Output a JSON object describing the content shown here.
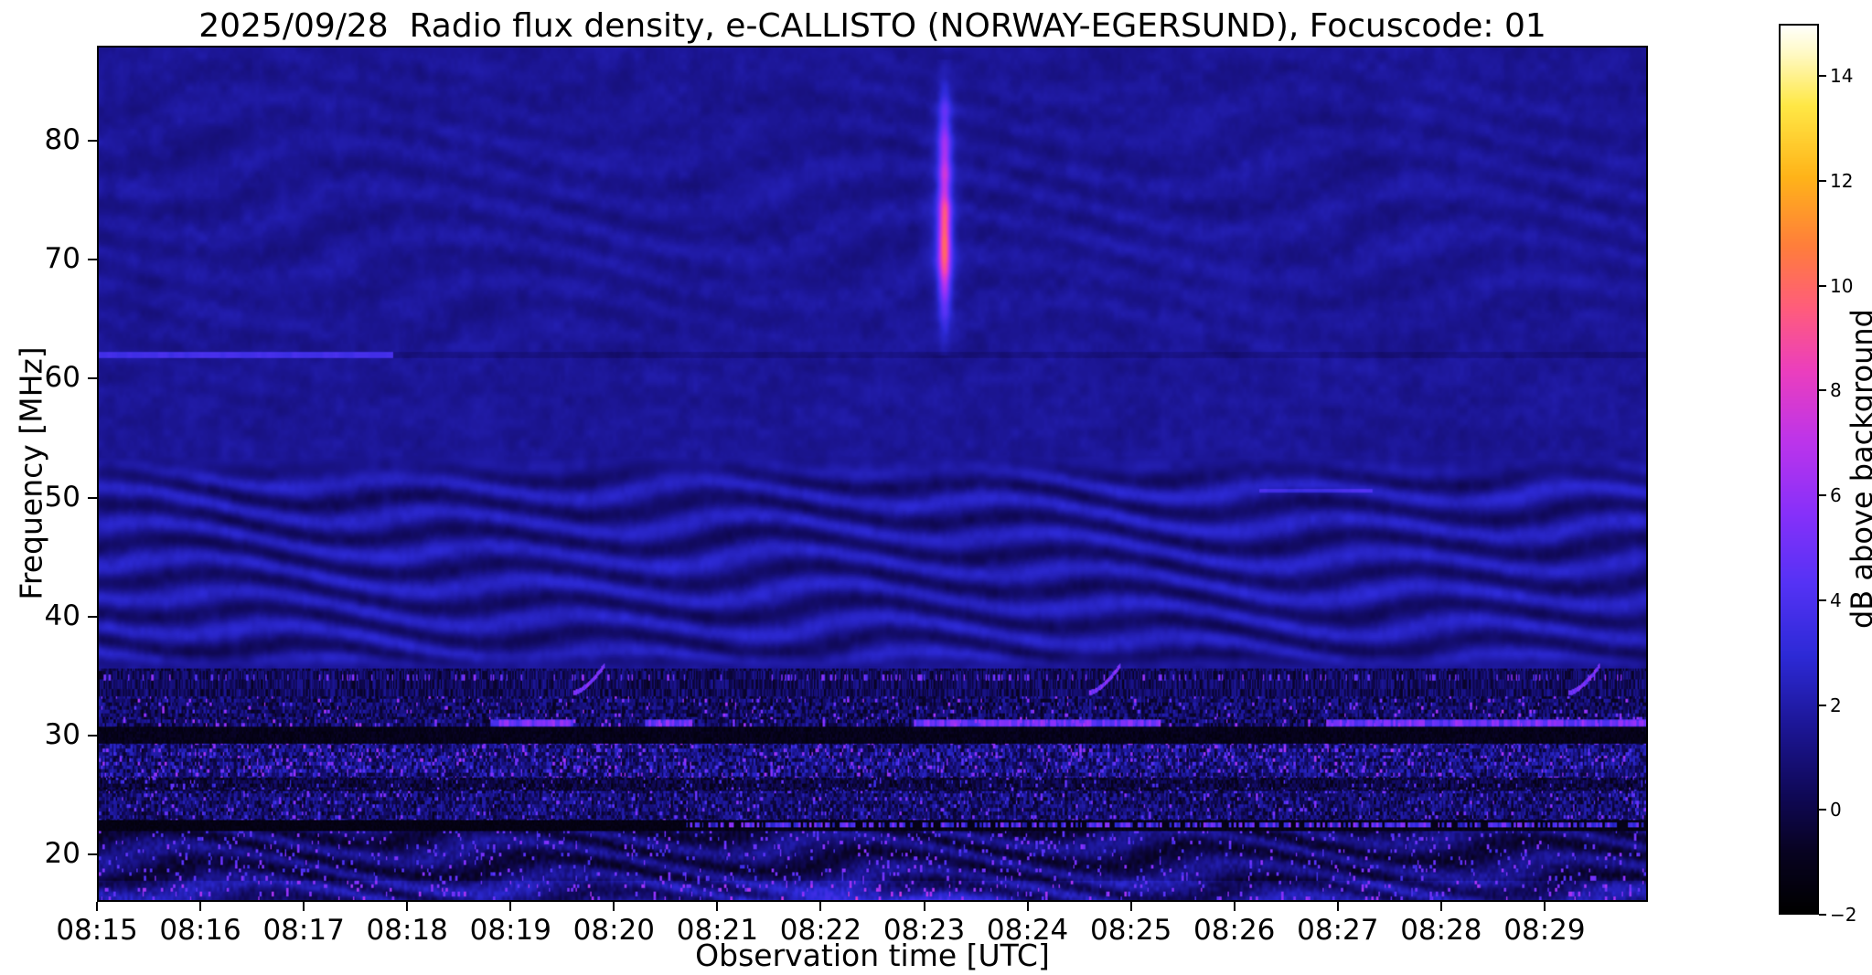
{
  "chart_data": {
    "type": "heatmap",
    "title": "2025/09/28  Radio flux density, e-CALLISTO (NORWAY-EGERSUND), Focuscode: 01",
    "xlabel": "Observation time [UTC]",
    "ylabel": "Frequency [MHz]",
    "x_tick_labels": [
      "08:15",
      "08:16",
      "08:17",
      "08:18",
      "08:19",
      "08:20",
      "08:21",
      "08:22",
      "08:23",
      "08:24",
      "08:25",
      "08:26",
      "08:27",
      "08:28",
      "08:29"
    ],
    "x_range_minutes": [
      0,
      15
    ],
    "x_start_label": "08:15",
    "x_end_label": "08:30",
    "y_ticks": [
      20,
      30,
      40,
      50,
      60,
      70,
      80
    ],
    "y_range_mhz": [
      16,
      88
    ],
    "grid": false,
    "legend": "none",
    "colorbar": {
      "label": "dB above background",
      "ticks": [
        -2,
        0,
        2,
        4,
        6,
        8,
        10,
        12,
        14
      ],
      "range": [
        -2,
        15
      ],
      "colormap": "gnuplot2-like: black to blue to violet to magenta to orange to yellow to white",
      "gradient_stops": [
        [
          0.0,
          [
            0,
            0,
            0
          ]
        ],
        [
          0.07,
          [
            8,
            3,
            35
          ]
        ],
        [
          0.13,
          [
            15,
            8,
            85
          ]
        ],
        [
          0.21,
          [
            28,
            22,
            150
          ]
        ],
        [
          0.29,
          [
            45,
            42,
            215
          ]
        ],
        [
          0.37,
          [
            85,
            50,
            245
          ]
        ],
        [
          0.45,
          [
            135,
            48,
            250
          ]
        ],
        [
          0.53,
          [
            188,
            52,
            235
          ]
        ],
        [
          0.61,
          [
            235,
            62,
            190
          ]
        ],
        [
          0.68,
          [
            255,
            92,
            125
          ]
        ],
        [
          0.75,
          [
            255,
            125,
            60
          ]
        ],
        [
          0.83,
          [
            255,
            180,
            25
          ]
        ],
        [
          0.91,
          [
            255,
            232,
            70
          ]
        ],
        [
          0.97,
          [
            255,
            250,
            200
          ]
        ],
        [
          1.0,
          [
            255,
            255,
            252
          ]
        ]
      ]
    },
    "background_level_db": 1.55,
    "features": {
      "calm_band_mhz": [
        53,
        88
      ],
      "ionospheric_wave_band_mhz": [
        36,
        53
      ],
      "rfi_speckle_band_mhz": [
        16,
        36
      ],
      "carrier_line": {
        "freq_mhz": 62.05,
        "bright_until_t_min": 2.85,
        "note": "narrow bright carrier 08:15 to about 08:17:50, faint dark trace afterwards"
      },
      "burst": {
        "t_min": 8.2,
        "time_utc": "08:23:12",
        "freq_span_mhz": [
          63,
          86
        ],
        "peak_freq_mhz": 71.5,
        "peak_db": 8.5,
        "note": "short vertical broadband burst"
      },
      "carrier_30mhz_freq": 30.95,
      "carrier_30mhz_segments_min": [
        [
          3.8,
          4.6
        ],
        [
          5.3,
          5.75
        ],
        [
          7.9,
          10.3
        ],
        [
          11.9,
          15.0
        ]
      ],
      "dashed_line_22mhz": {
        "freq_mhz": 22.35,
        "from_t_min": 5.7
      },
      "black_band_22mhz": [
        21.8,
        22.8
      ],
      "black_band_29mhz": [
        29.2,
        30.6
      ],
      "faint_line_50mhz": {
        "freq_mhz": 50.55,
        "t_min": [
          11.25,
          12.35
        ]
      },
      "rising_bursts_t_min": [
        4.6,
        9.6,
        14.25
      ],
      "rising_bursts_freq_span": [
        33.5,
        35.8
      ],
      "bottom_bright_patch": {
        "t_min": [
          6.2,
          8.8
        ],
        "freq_below_mhz": 17.2
      }
    }
  }
}
